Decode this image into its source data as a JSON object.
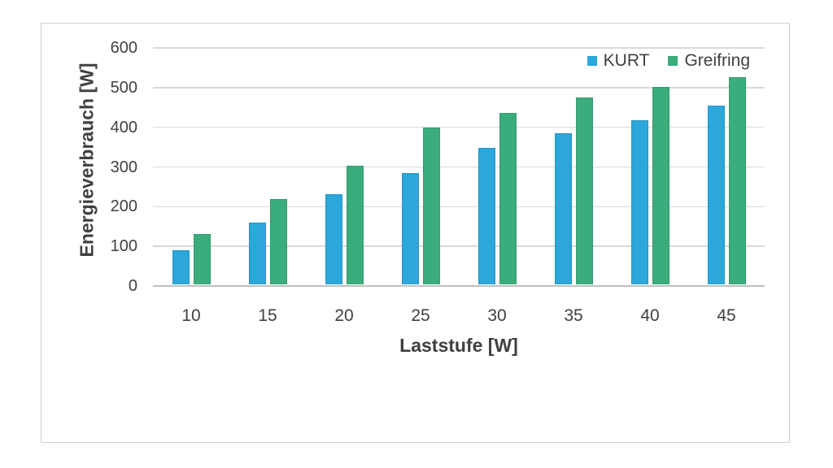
{
  "chart_data": {
    "type": "bar",
    "title": "",
    "categories": [
      "10",
      "15",
      "20",
      "25",
      "30",
      "35",
      "40",
      "45"
    ],
    "series": [
      {
        "name": "KURT",
        "color": "#2BA7DB",
        "values": [
          87,
          155,
          228,
          280,
          344,
          381,
          413,
          450
        ]
      },
      {
        "name": "Greifring",
        "color": "#3BAC7C",
        "values": [
          127,
          215,
          300,
          396,
          433,
          470,
          497,
          523
        ]
      }
    ],
    "xlabel": "Laststufe [W]",
    "ylabel": "Energieverbrauch [W]",
    "ylim": [
      0,
      600
    ],
    "ytick_step": 100,
    "grid": true,
    "legend_position": "top-right"
  },
  "colors": {
    "kurt_blue": "#2BA7DB",
    "greifring_green": "#3BAC7C",
    "gridline": "#D9D9D9",
    "axis_line": "#C0C0C0",
    "text": "#404040",
    "frame_border": "#CFCFCF",
    "background": "#FFFFFF"
  }
}
